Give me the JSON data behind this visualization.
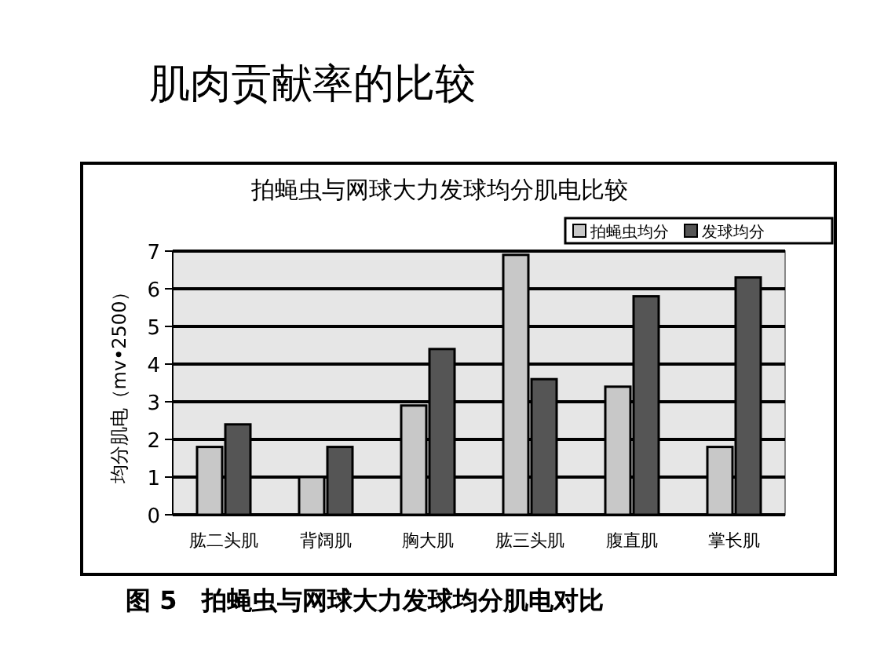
{
  "chart_data": {
    "type": "bar",
    "title": "肌肉贡献率的比较",
    "subtitle": "拍蝇虫与网球大力发球均分肌电比较",
    "ylabel": "均分肌电（mv•2500）",
    "annotations": [
      "图 5　拍蝇虫与网球大力发球均分肌电对比"
    ],
    "categories": [
      "肱二头肌",
      "背阔肌",
      "胸大肌",
      "肱三头肌",
      "腹直肌",
      "掌长肌"
    ],
    "series": [
      {
        "name": "拍蝇虫均分",
        "color": "#c8c8c8",
        "values": [
          1.8,
          1.0,
          2.9,
          6.9,
          3.4,
          1.8
        ]
      },
      {
        "name": "发球均分",
        "color": "#555555",
        "values": [
          2.4,
          1.8,
          4.4,
          3.6,
          5.8,
          6.3
        ]
      }
    ],
    "ylim": [
      0,
      7
    ],
    "yticks": [
      0,
      1,
      2,
      3,
      4,
      5,
      6,
      7
    ],
    "grid": "y",
    "legend": "top right"
  }
}
